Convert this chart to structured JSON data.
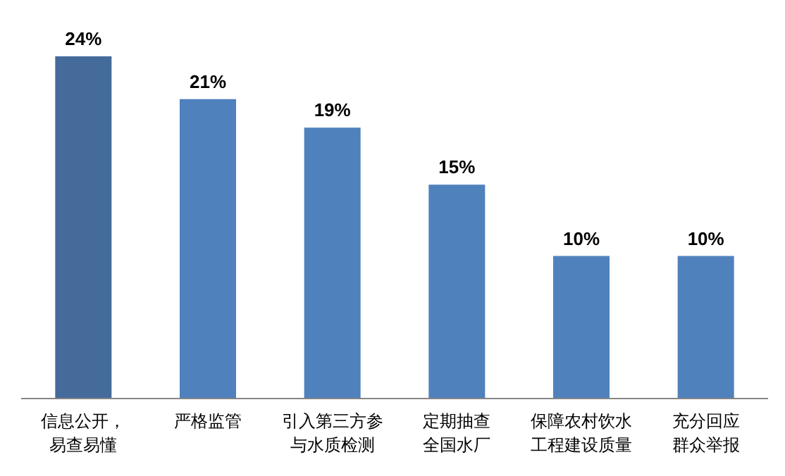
{
  "chart_data": {
    "type": "bar",
    "categories": [
      "信息公开，易查易懂",
      "严格监管",
      "引入第三方参与水质检测",
      "定期抽查全国水厂",
      "保障农村饮水工程建设质量",
      "充分回应群众举报"
    ],
    "values": [
      24,
      21,
      19,
      15,
      10,
      10
    ],
    "colors": [
      "#456b9b",
      "#4f81bd",
      "#4f81bd",
      "#4f81bd",
      "#4f81bd",
      "#4f81bd"
    ],
    "value_labels": [
      "24%",
      "21%",
      "19%",
      "15%",
      "10%",
      "10%"
    ]
  }
}
